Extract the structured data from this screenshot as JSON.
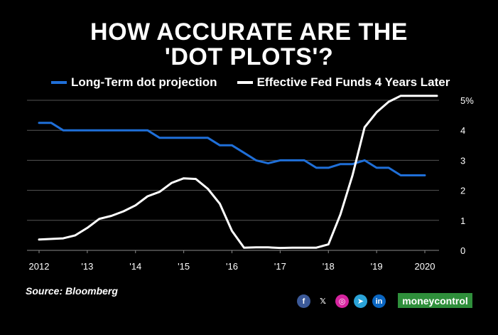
{
  "title_line1": "HOW ACCURATE ARE THE",
  "title_line2": "'DOT PLOTS'?",
  "source": "Source: Bloomberg",
  "brand": {
    "part1": "money",
    "part2": "control"
  },
  "socials": [
    {
      "name": "facebook",
      "glyph": "f",
      "color": "#3b5998"
    },
    {
      "name": "x",
      "glyph": "𝕏",
      "color": "#000000"
    },
    {
      "name": "instagram",
      "glyph": "◎",
      "color": "#d6249f"
    },
    {
      "name": "telegram",
      "glyph": "➤",
      "color": "#2aa3d8"
    },
    {
      "name": "linkedin",
      "glyph": "in",
      "color": "#0a66c2"
    }
  ],
  "chart_data": {
    "type": "line",
    "title": "HOW ACCURATE ARE THE 'DOT PLOTS'?",
    "xlim": [
      2012,
      2020.25
    ],
    "ylim": [
      0,
      5
    ],
    "x_ticks": [
      2012,
      2013,
      2014,
      2015,
      2016,
      2017,
      2018,
      2019,
      2020
    ],
    "x_tick_labels": [
      "2012",
      "'13",
      "'14",
      "'15",
      "'16",
      "'17",
      "'18",
      "'19",
      "2020"
    ],
    "y_ticks": [
      0,
      1,
      2,
      3,
      4,
      5
    ],
    "y_tick_labels": [
      "0",
      "1",
      "2",
      "3",
      "4",
      "5%"
    ],
    "grid": true,
    "series": [
      {
        "name": "Long-Term dot projection",
        "color": "#1f6fd8",
        "points": [
          [
            2012.0,
            4.25
          ],
          [
            2012.25,
            4.25
          ],
          [
            2012.5,
            4.0
          ],
          [
            2012.75,
            4.0
          ],
          [
            2013.0,
            4.0
          ],
          [
            2013.25,
            4.0
          ],
          [
            2013.5,
            4.0
          ],
          [
            2013.75,
            4.0
          ],
          [
            2014.0,
            4.0
          ],
          [
            2014.25,
            4.0
          ],
          [
            2014.5,
            3.75
          ],
          [
            2014.75,
            3.75
          ],
          [
            2015.0,
            3.75
          ],
          [
            2015.25,
            3.75
          ],
          [
            2015.5,
            3.75
          ],
          [
            2015.75,
            3.5
          ],
          [
            2016.0,
            3.5
          ],
          [
            2016.25,
            3.25
          ],
          [
            2016.5,
            3.0
          ],
          [
            2016.75,
            2.9
          ],
          [
            2017.0,
            3.0
          ],
          [
            2017.25,
            3.0
          ],
          [
            2017.5,
            3.0
          ],
          [
            2017.75,
            2.75
          ],
          [
            2018.0,
            2.75
          ],
          [
            2018.25,
            2.875
          ],
          [
            2018.5,
            2.875
          ],
          [
            2018.75,
            3.0
          ],
          [
            2019.0,
            2.75
          ],
          [
            2019.25,
            2.75
          ],
          [
            2019.5,
            2.5
          ],
          [
            2019.75,
            2.5
          ],
          [
            2020.0,
            2.5
          ]
        ]
      },
      {
        "name": "Effective Fed Funds 4 Years Later",
        "color": "#ffffff",
        "points": [
          [
            2012.0,
            0.36
          ],
          [
            2012.5,
            0.4
          ],
          [
            2012.75,
            0.5
          ],
          [
            2013.0,
            0.75
          ],
          [
            2013.25,
            1.05
          ],
          [
            2013.5,
            1.15
          ],
          [
            2013.75,
            1.3
          ],
          [
            2014.0,
            1.5
          ],
          [
            2014.25,
            1.8
          ],
          [
            2014.5,
            1.95
          ],
          [
            2014.75,
            2.25
          ],
          [
            2015.0,
            2.4
          ],
          [
            2015.25,
            2.38
          ],
          [
            2015.5,
            2.05
          ],
          [
            2015.75,
            1.55
          ],
          [
            2016.0,
            0.65
          ],
          [
            2016.25,
            0.09
          ],
          [
            2016.5,
            0.1
          ],
          [
            2016.75,
            0.1
          ],
          [
            2017.0,
            0.08
          ],
          [
            2017.25,
            0.09
          ],
          [
            2017.5,
            0.09
          ],
          [
            2017.75,
            0.09
          ],
          [
            2018.0,
            0.2
          ],
          [
            2018.25,
            1.2
          ],
          [
            2018.5,
            2.5
          ],
          [
            2018.75,
            4.1
          ],
          [
            2019.0,
            4.6
          ],
          [
            2019.25,
            4.95
          ],
          [
            2019.5,
            5.15
          ],
          [
            2019.75,
            5.15
          ],
          [
            2020.0,
            5.15
          ],
          [
            2020.25,
            5.15
          ]
        ]
      }
    ]
  }
}
